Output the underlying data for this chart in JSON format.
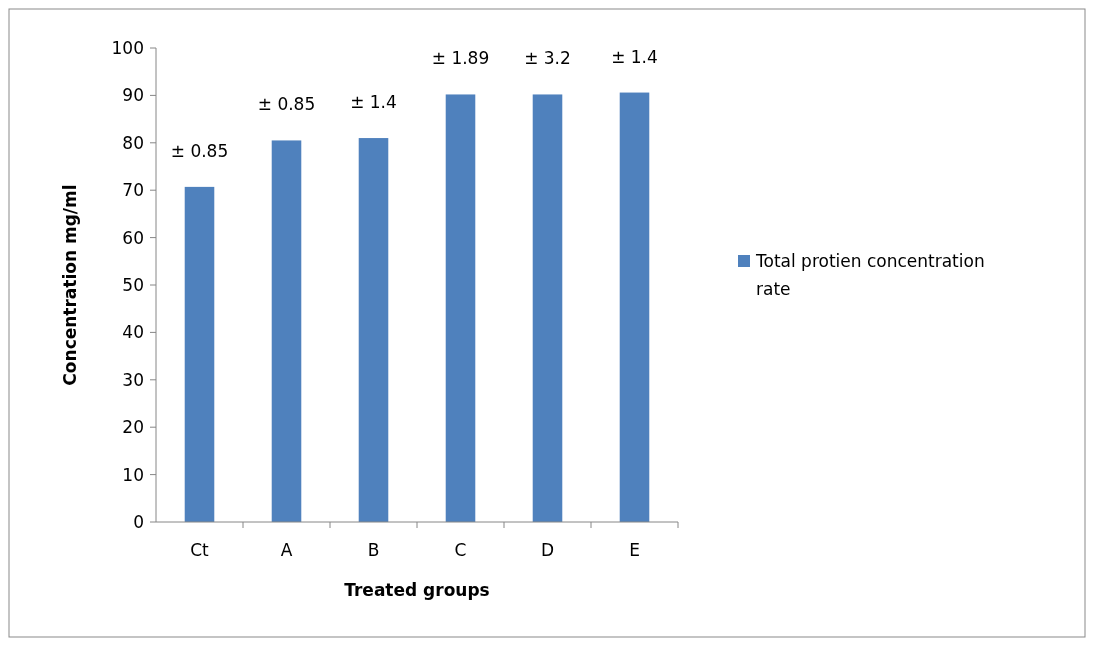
{
  "chart_data": {
    "type": "bar",
    "xlabel": "Treated groups",
    "ylabel": "Concentration mg/ml",
    "categories": [
      "Ct",
      "A",
      "B",
      "C",
      "D",
      "E"
    ],
    "series": [
      {
        "name": "Total protien concentration rate",
        "color": "#4f81bd",
        "values": [
          70.7,
          80.5,
          81,
          90.2,
          90.2,
          90.6
        ]
      }
    ],
    "annotations": [
      {
        "text": "± 0.85",
        "x": "Ct",
        "y": 70.7
      },
      {
        "text": "± 0.85",
        "x": "A",
        "y": 80.5
      },
      {
        "text": "± 1.4",
        "x": "B",
        "y": 81
      },
      {
        "text": "± 1.89",
        "x": "C",
        "y": 90.2
      },
      {
        "text": "± 3.2",
        "x": "D",
        "y": 90.2
      },
      {
        "text": "± 1.4",
        "x": "E",
        "y": 90.6
      }
    ],
    "ylim": [
      0,
      100
    ],
    "yticks": [
      0,
      10,
      20,
      30,
      40,
      50,
      60,
      70,
      80,
      90,
      100
    ],
    "grid": false,
    "legend": "right"
  }
}
